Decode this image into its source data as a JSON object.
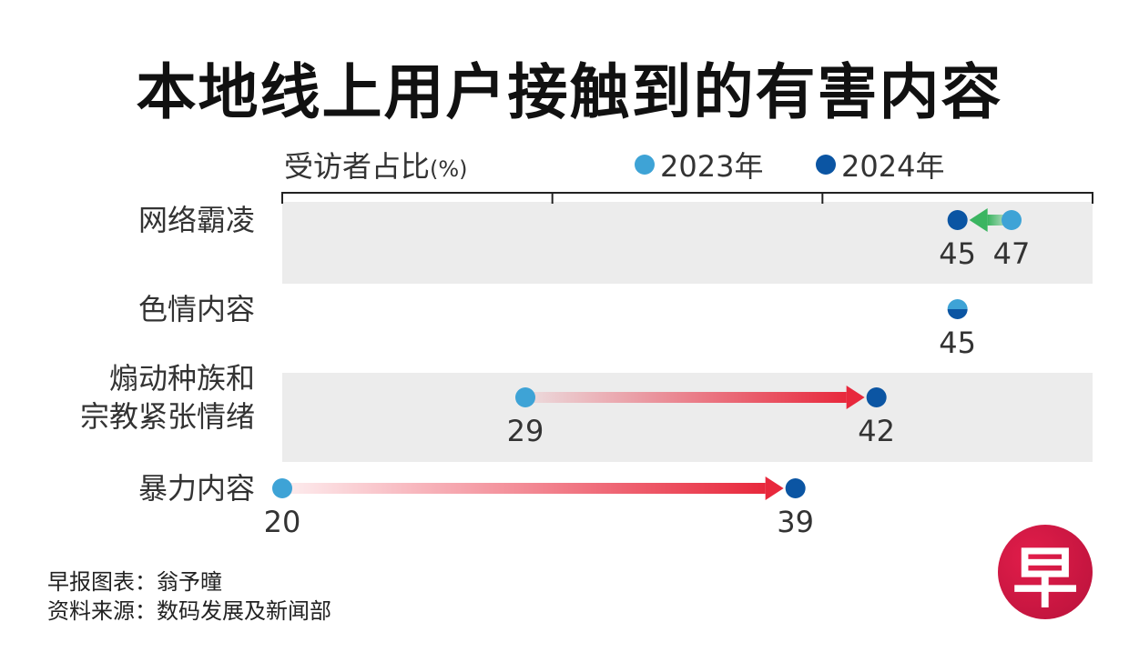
{
  "chart_data": {
    "type": "dumbbell",
    "title": "本地线上用户接触到的有害内容",
    "ylabel": "受访者占比",
    "unit": "(%)",
    "xlim": [
      20,
      50
    ],
    "xticks": [
      20,
      30,
      40,
      50
    ],
    "legend": [
      {
        "name": "2023年",
        "color": "#3ea3d6"
      },
      {
        "name": "2024年",
        "color": "#0b55a3"
      }
    ],
    "categories": [
      "网络霸凌",
      "色情内容",
      "煽动种族和宗教紧张情绪",
      "暴力内容"
    ],
    "category_lines": [
      [
        "网络霸凌"
      ],
      [
        "色情内容"
      ],
      [
        "煽动种族和",
        "宗教紧张情绪"
      ],
      [
        "暴力内容"
      ]
    ],
    "series": [
      {
        "name": "2023年",
        "values": [
          47,
          45,
          29,
          20
        ]
      },
      {
        "name": "2024年",
        "values": [
          45,
          45,
          42,
          39
        ]
      }
    ],
    "arrow_colors": {
      "up": "#e8283c",
      "down": "#3bb561"
    },
    "band_color": "#ececec"
  },
  "footer": {
    "credit": "早报图表：翁予曈",
    "source": "资料来源：数码发展及新闻部"
  },
  "logo": {
    "text": "早"
  }
}
